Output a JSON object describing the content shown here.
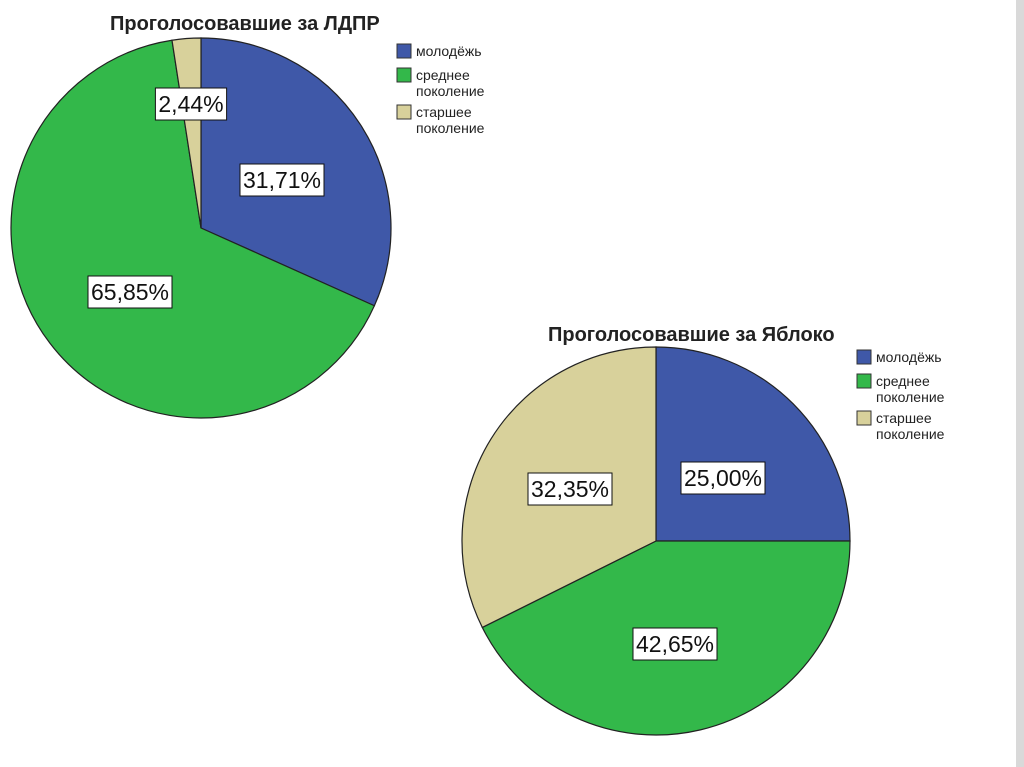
{
  "chart_data": [
    {
      "type": "pie",
      "title": "Проголосовавшие за ЛДПР",
      "categories": [
        "молодёжь",
        "среднее поколение",
        "старшее поколение"
      ],
      "values": [
        31.71,
        65.85,
        2.44
      ],
      "data_labels": [
        "31,71%",
        "65,85%",
        "2,44%"
      ],
      "colors": [
        "#3f58a8",
        "#33b84a",
        "#d8d19b"
      ],
      "legend": {
        "placement": "top-right",
        "items": [
          {
            "lines": [
              "молодёжь"
            ]
          },
          {
            "lines": [
              "среднее",
              "поколение"
            ]
          },
          {
            "lines": [
              "старшее",
              "поколение"
            ]
          }
        ]
      }
    },
    {
      "type": "pie",
      "title": "Проголосовавшие за Яблоко",
      "categories": [
        "молодёжь",
        "среднее поколение",
        "старшее поколение"
      ],
      "values": [
        25.0,
        42.65,
        32.35
      ],
      "data_labels": [
        "25,00%",
        "42,65%",
        "32,35%"
      ],
      "colors": [
        "#3f58a8",
        "#33b84a",
        "#d8d19b"
      ],
      "legend": {
        "placement": "top-right",
        "items": [
          {
            "lines": [
              "молодёжь"
            ]
          },
          {
            "lines": [
              "среднее",
              "поколение"
            ]
          },
          {
            "lines": [
              "старшее",
              "поколение"
            ]
          }
        ]
      }
    }
  ]
}
